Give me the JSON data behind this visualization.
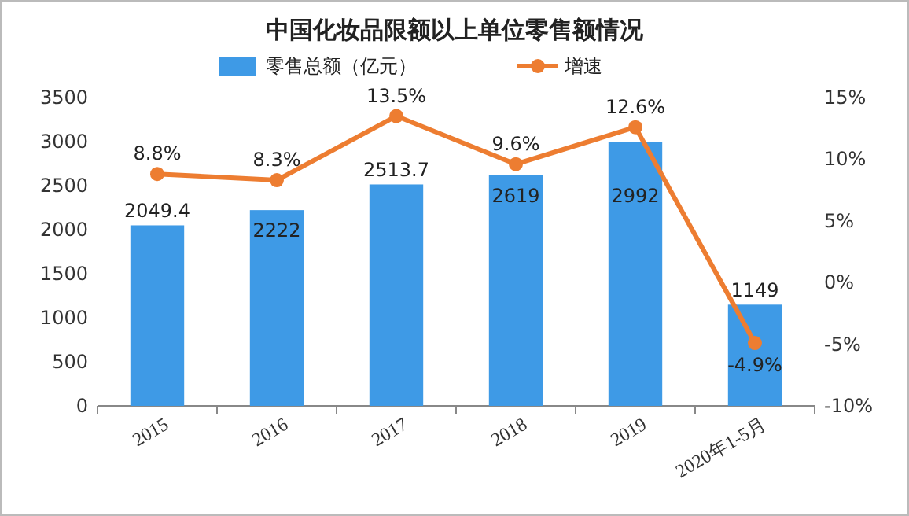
{
  "chart_data": {
    "type": "bar",
    "title": "中国化妆品限额以上单位零售额情况",
    "categories": [
      "2015",
      "2016",
      "2017",
      "2018",
      "2019",
      "2020年1-5月"
    ],
    "series": [
      {
        "name": "零售总额（亿元）",
        "color": "#3e9ae6",
        "values": [
          2049.4,
          2222,
          2513.7,
          2619,
          2992,
          1149
        ]
      },
      {
        "name": "增速",
        "type": "line",
        "axis": "y2",
        "color": "#ed7d31",
        "marker": "circle",
        "values": [
          8.8,
          8.3,
          13.5,
          9.6,
          12.6,
          -4.9
        ],
        "value_labels": [
          "8.8%",
          "8.3%",
          "13.5%",
          "9.6%",
          "12.6%",
          "-4.9%"
        ]
      }
    ],
    "ylim": [
      0,
      3500
    ],
    "yticks": [
      0,
      500,
      1000,
      1500,
      2000,
      2500,
      3000,
      3500
    ],
    "y2lim": [
      -10,
      15
    ],
    "y2ticks": [
      {
        "value": -10,
        "label": "-10%"
      },
      {
        "value": -5,
        "label": "-5%"
      },
      {
        "value": 0,
        "label": "0%"
      },
      {
        "value": 5,
        "label": "5%"
      },
      {
        "value": 10,
        "label": "10%"
      },
      {
        "value": 15,
        "label": "15%"
      }
    ],
    "data_labels": true,
    "legend": "top",
    "grid": false
  }
}
